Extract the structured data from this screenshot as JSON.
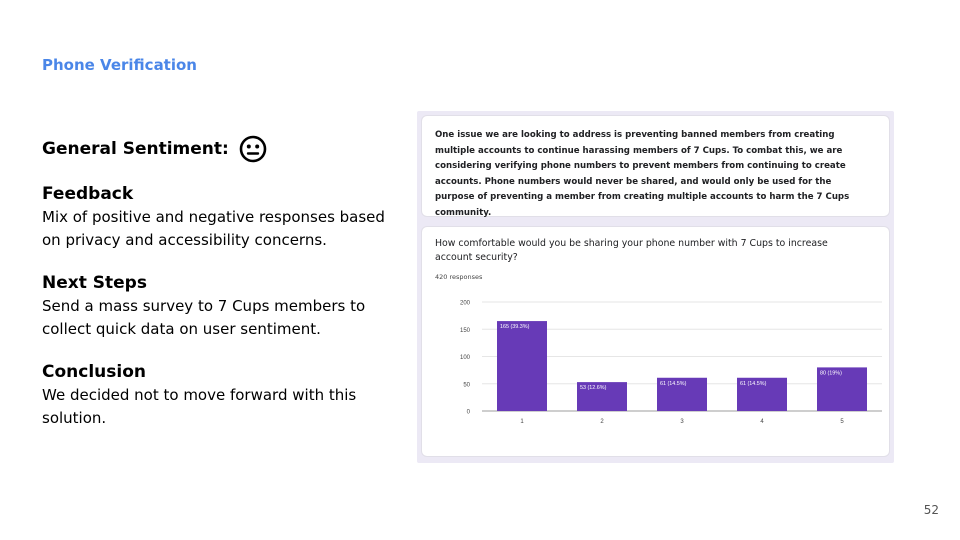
{
  "slide": {
    "section_label": "Phone Verification",
    "page_number": "52"
  },
  "sentiment": {
    "label": "General Sentiment:",
    "icon": "neutral-face-icon"
  },
  "blocks": [
    {
      "title": "Feedback",
      "body": "Mix of positive and negative responses based on privacy and accessibility concerns."
    },
    {
      "title": "Next Steps",
      "body": "Send a mass survey to 7 Cups members to collect quick data on user sentiment."
    },
    {
      "title": "Conclusion",
      "body": "We decided not to move forward with this solution."
    }
  ],
  "survey": {
    "intro": "One issue we are looking to address is preventing banned members from creating multiple accounts to continue harassing members of 7 Cups. To combat this, we are considering verifying phone numbers to prevent members from continuing to create accounts. Phone numbers would never be shared, and would only be used for the purpose of preventing a member from creating multiple accounts to harm the 7 Cups community.",
    "question": "How comfortable would you be sharing your phone number with 7 Cups to increase account security?",
    "responses": "420 responses"
  },
  "colors": {
    "accent": "#4a86e8",
    "bar": "#673ab7",
    "panel_bg": "#ece9f5"
  },
  "chart_data": {
    "type": "bar",
    "categories": [
      "1",
      "2",
      "3",
      "4",
      "5"
    ],
    "values": [
      165,
      53,
      61,
      61,
      80
    ],
    "data_labels": [
      "165 (39.3%)",
      "53 (12.6%)",
      "61 (14.5%)",
      "61 (14.5%)",
      "80 (19%)"
    ],
    "yticks": [
      "0",
      "50",
      "100",
      "150",
      "200"
    ],
    "ylim": [
      0,
      200
    ],
    "grid": true
  }
}
